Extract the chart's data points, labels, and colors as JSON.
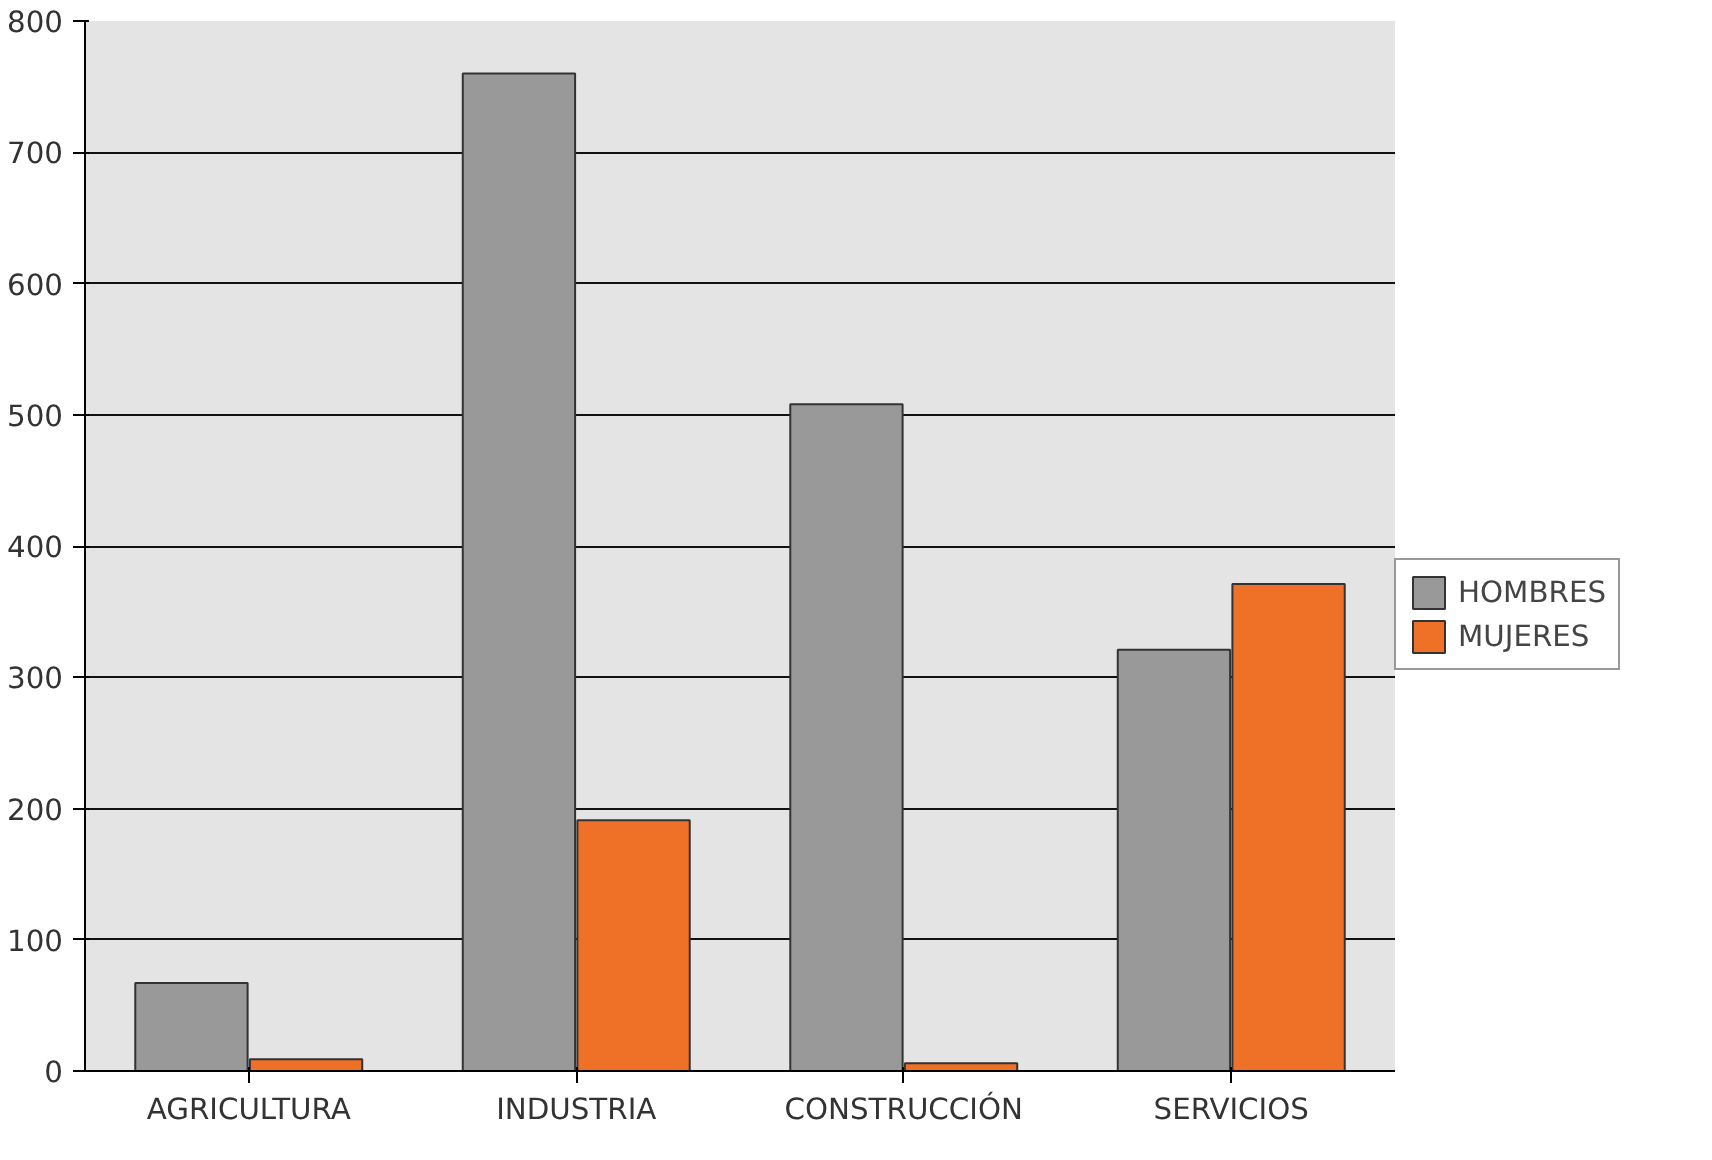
{
  "chart_data": {
    "type": "bar",
    "categories": [
      "AGRICULTURA",
      "INDUSTRIA",
      "CONSTRUCCIÓN",
      "SERVICIOS"
    ],
    "series": [
      {
        "name": "HOMBRES",
        "color": "#999999",
        "values": [
          67,
          760,
          508,
          321
        ]
      },
      {
        "name": "MUJERES",
        "color": "#ee7127",
        "values": [
          9,
          191,
          6,
          371
        ]
      }
    ],
    "ylim": [
      0,
      800
    ],
    "yticks": [
      0,
      100,
      200,
      300,
      400,
      500,
      600,
      700,
      800
    ],
    "grid": "y",
    "legend": "right"
  }
}
